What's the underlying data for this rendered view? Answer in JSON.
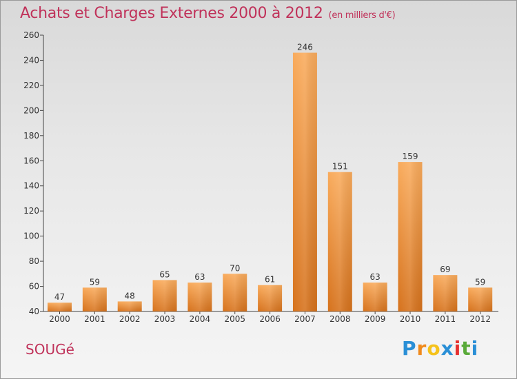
{
  "title": "Achats et Charges Externes 2000 à 2012",
  "unit": "(en milliers d'€)",
  "commune": "SOUGé",
  "logo": {
    "letters": [
      "P",
      "r",
      "o",
      "x",
      "i",
      "t",
      "i"
    ],
    "colors": [
      "#2a8fd6",
      "#f08a1c",
      "#f5c21b",
      "#2a8fd6",
      "#e6302f",
      "#5aaa3a",
      "#2a8fd6"
    ]
  },
  "colors": {
    "title": "#c0325a",
    "bar_light": "#f7a95a",
    "bar_dark": "#d8741c"
  },
  "chart_data": {
    "type": "bar",
    "title": "Achats et Charges Externes 2000 à 2012",
    "subtitle": "(en milliers d'€)",
    "categories": [
      "2000",
      "2001",
      "2002",
      "2003",
      "2004",
      "2005",
      "2006",
      "2007",
      "2008",
      "2009",
      "2010",
      "2011",
      "2012"
    ],
    "values": [
      47,
      59,
      48,
      65,
      63,
      70,
      61,
      246,
      151,
      63,
      159,
      69,
      59
    ],
    "ylim": [
      40,
      260
    ],
    "yticks": [
      40,
      60,
      80,
      100,
      120,
      140,
      160,
      180,
      200,
      220,
      240,
      260
    ],
    "grid": false
  }
}
